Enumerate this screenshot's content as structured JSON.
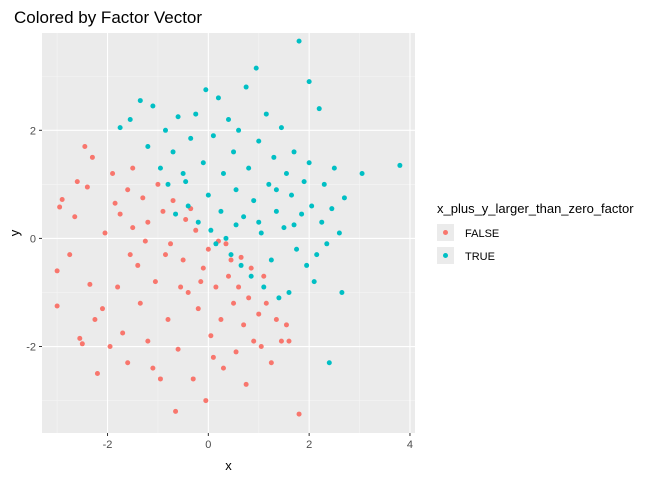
{
  "chart_data": {
    "type": "scatter",
    "title": "Colored by Factor Vector",
    "xlabel": "x",
    "ylabel": "y",
    "xlim": [
      -3.3,
      4.1
    ],
    "ylim": [
      -3.6,
      3.8
    ],
    "x_ticks": [
      -2,
      0,
      2,
      4
    ],
    "y_ticks": [
      -2,
      0,
      2
    ],
    "x_tick_labels": [
      "-2",
      "0",
      "2",
      "4"
    ],
    "y_tick_labels": [
      "-2",
      "0",
      "2"
    ],
    "grid": true,
    "legend": {
      "title": "x_plus_y_larger_than_zero_factor",
      "placement": "right",
      "entries": [
        {
          "label": "FALSE",
          "color": "#F8766D"
        },
        {
          "label": "TRUE",
          "color": "#00BFC4"
        }
      ]
    },
    "series": [
      {
        "name": "FALSE",
        "color": "#F8766D",
        "points": [
          [
            -3.0,
            -0.6
          ],
          [
            -3.0,
            -1.25
          ],
          [
            -2.95,
            0.58
          ],
          [
            -2.9,
            0.72
          ],
          [
            -2.75,
            -0.3
          ],
          [
            -2.6,
            1.05
          ],
          [
            -2.55,
            -1.85
          ],
          [
            -2.5,
            -1.95
          ],
          [
            -2.45,
            1.7
          ],
          [
            -2.4,
            0.95
          ],
          [
            -2.3,
            1.5
          ],
          [
            -2.25,
            -1.5
          ],
          [
            -2.2,
            -2.5
          ],
          [
            -2.1,
            -1.3
          ],
          [
            -2.05,
            0.1
          ],
          [
            -1.9,
            1.2
          ],
          [
            -1.8,
            -0.9
          ],
          [
            -1.75,
            0.45
          ],
          [
            -1.7,
            -1.75
          ],
          [
            -1.6,
            0.9
          ],
          [
            -1.6,
            -2.3
          ],
          [
            -1.5,
            1.3
          ],
          [
            -1.5,
            0.2
          ],
          [
            -1.4,
            -0.5
          ],
          [
            -1.35,
            -1.2
          ],
          [
            -1.3,
            0.75
          ],
          [
            -1.2,
            -1.9
          ],
          [
            -1.2,
            0.3
          ],
          [
            -1.1,
            -2.4
          ],
          [
            -1.05,
            -0.8
          ],
          [
            -1.0,
            1.0
          ],
          [
            -0.95,
            -2.6
          ],
          [
            -0.9,
            0.5
          ],
          [
            -0.8,
            -1.5
          ],
          [
            -0.75,
            -0.1
          ],
          [
            -0.7,
            0.7
          ],
          [
            -0.65,
            -3.2
          ],
          [
            -0.6,
            -2.05
          ],
          [
            -0.5,
            -0.4
          ],
          [
            -0.45,
            0.35
          ],
          [
            -0.4,
            -1.0
          ],
          [
            -0.3,
            -2.6
          ],
          [
            -0.25,
            0.15
          ],
          [
            -0.2,
            -1.3
          ],
          [
            -0.1,
            -0.55
          ],
          [
            -0.05,
            -3.0
          ],
          [
            0.0,
            -0.2
          ],
          [
            0.05,
            -1.8
          ],
          [
            0.1,
            -2.2
          ],
          [
            0.15,
            -0.9
          ],
          [
            0.2,
            -0.05
          ],
          [
            0.25,
            -1.5
          ],
          [
            0.3,
            -2.4
          ],
          [
            0.4,
            -0.7
          ],
          [
            0.45,
            -0.4
          ],
          [
            0.5,
            -1.2
          ],
          [
            0.55,
            -2.1
          ],
          [
            0.6,
            -0.9
          ],
          [
            0.7,
            -1.6
          ],
          [
            0.75,
            -2.7
          ],
          [
            0.8,
            -1.1
          ],
          [
            0.9,
            -1.9
          ],
          [
            1.0,
            -1.4
          ],
          [
            1.05,
            -2.0
          ],
          [
            1.15,
            -1.2
          ],
          [
            1.25,
            -2.3
          ],
          [
            1.35,
            -1.5
          ],
          [
            1.45,
            -1.9
          ],
          [
            1.55,
            -1.6
          ],
          [
            1.6,
            -1.9
          ],
          [
            1.8,
            -3.25
          ],
          [
            -2.65,
            0.4
          ],
          [
            -2.35,
            -0.85
          ],
          [
            -1.95,
            -2.0
          ],
          [
            -1.85,
            0.65
          ],
          [
            -1.55,
            -0.3
          ],
          [
            -1.25,
            -0.05
          ],
          [
            -0.85,
            -0.3
          ],
          [
            -0.55,
            -0.9
          ],
          [
            -0.35,
            0.55
          ],
          [
            -0.15,
            -0.8
          ],
          [
            0.35,
            -0.1
          ],
          [
            0.65,
            -0.35
          ],
          [
            0.85,
            -0.55
          ],
          [
            1.1,
            -0.7
          ]
        ]
      },
      {
        "name": "TRUE",
        "color": "#00BFC4",
        "points": [
          [
            -1.75,
            2.05
          ],
          [
            -1.55,
            2.2
          ],
          [
            -1.35,
            2.55
          ],
          [
            -1.2,
            1.7
          ],
          [
            -1.1,
            2.45
          ],
          [
            -0.95,
            1.3
          ],
          [
            -0.85,
            2.0
          ],
          [
            -0.8,
            1.0
          ],
          [
            -0.7,
            1.6
          ],
          [
            -0.6,
            2.25
          ],
          [
            -0.5,
            1.2
          ],
          [
            -0.4,
            0.6
          ],
          [
            -0.35,
            1.85
          ],
          [
            -0.25,
            2.3
          ],
          [
            -0.2,
            0.3
          ],
          [
            -0.1,
            1.4
          ],
          [
            -0.05,
            2.75
          ],
          [
            0.0,
            0.8
          ],
          [
            0.05,
            0.15
          ],
          [
            0.1,
            1.9
          ],
          [
            0.2,
            2.6
          ],
          [
            0.25,
            0.5
          ],
          [
            0.3,
            1.2
          ],
          [
            0.35,
            0.0
          ],
          [
            0.4,
            2.2
          ],
          [
            0.45,
            -0.3
          ],
          [
            0.5,
            1.6
          ],
          [
            0.55,
            0.9
          ],
          [
            0.6,
            2.0
          ],
          [
            0.65,
            -0.5
          ],
          [
            0.7,
            0.4
          ],
          [
            0.75,
            2.8
          ],
          [
            0.8,
            1.3
          ],
          [
            0.85,
            -0.7
          ],
          [
            0.9,
            0.7
          ],
          [
            0.95,
            3.15
          ],
          [
            1.0,
            1.8
          ],
          [
            1.05,
            0.1
          ],
          [
            1.1,
            -0.9
          ],
          [
            1.15,
            2.3
          ],
          [
            1.2,
            1.0
          ],
          [
            1.25,
            -0.4
          ],
          [
            1.3,
            1.5
          ],
          [
            1.35,
            0.5
          ],
          [
            1.4,
            -1.1
          ],
          [
            1.45,
            2.05
          ],
          [
            1.5,
            0.2
          ],
          [
            1.55,
            1.2
          ],
          [
            1.6,
            -1.0
          ],
          [
            1.65,
            0.8
          ],
          [
            1.7,
            1.6
          ],
          [
            1.75,
            -0.2
          ],
          [
            1.8,
            3.65
          ],
          [
            1.85,
            0.45
          ],
          [
            1.9,
            1.05
          ],
          [
            1.95,
            -0.5
          ],
          [
            2.0,
            2.9
          ],
          [
            2.05,
            0.6
          ],
          [
            2.1,
            -0.8
          ],
          [
            2.2,
            2.4
          ],
          [
            2.25,
            0.3
          ],
          [
            2.3,
            1.0
          ],
          [
            2.35,
            -0.1
          ],
          [
            2.4,
            -2.3
          ],
          [
            2.45,
            0.55
          ],
          [
            2.5,
            1.3
          ],
          [
            2.6,
            0.1
          ],
          [
            2.65,
            -1.0
          ],
          [
            2.7,
            0.75
          ],
          [
            3.05,
            1.2
          ],
          [
            3.8,
            1.35
          ],
          [
            -0.65,
            0.45
          ],
          [
            -0.45,
            1.05
          ],
          [
            0.15,
            -0.1
          ],
          [
            0.55,
            0.25
          ],
          [
            1.0,
            0.3
          ],
          [
            1.35,
            0.9
          ],
          [
            1.7,
            0.25
          ],
          [
            2.0,
            1.4
          ],
          [
            2.15,
            -0.3
          ]
        ]
      }
    ]
  }
}
